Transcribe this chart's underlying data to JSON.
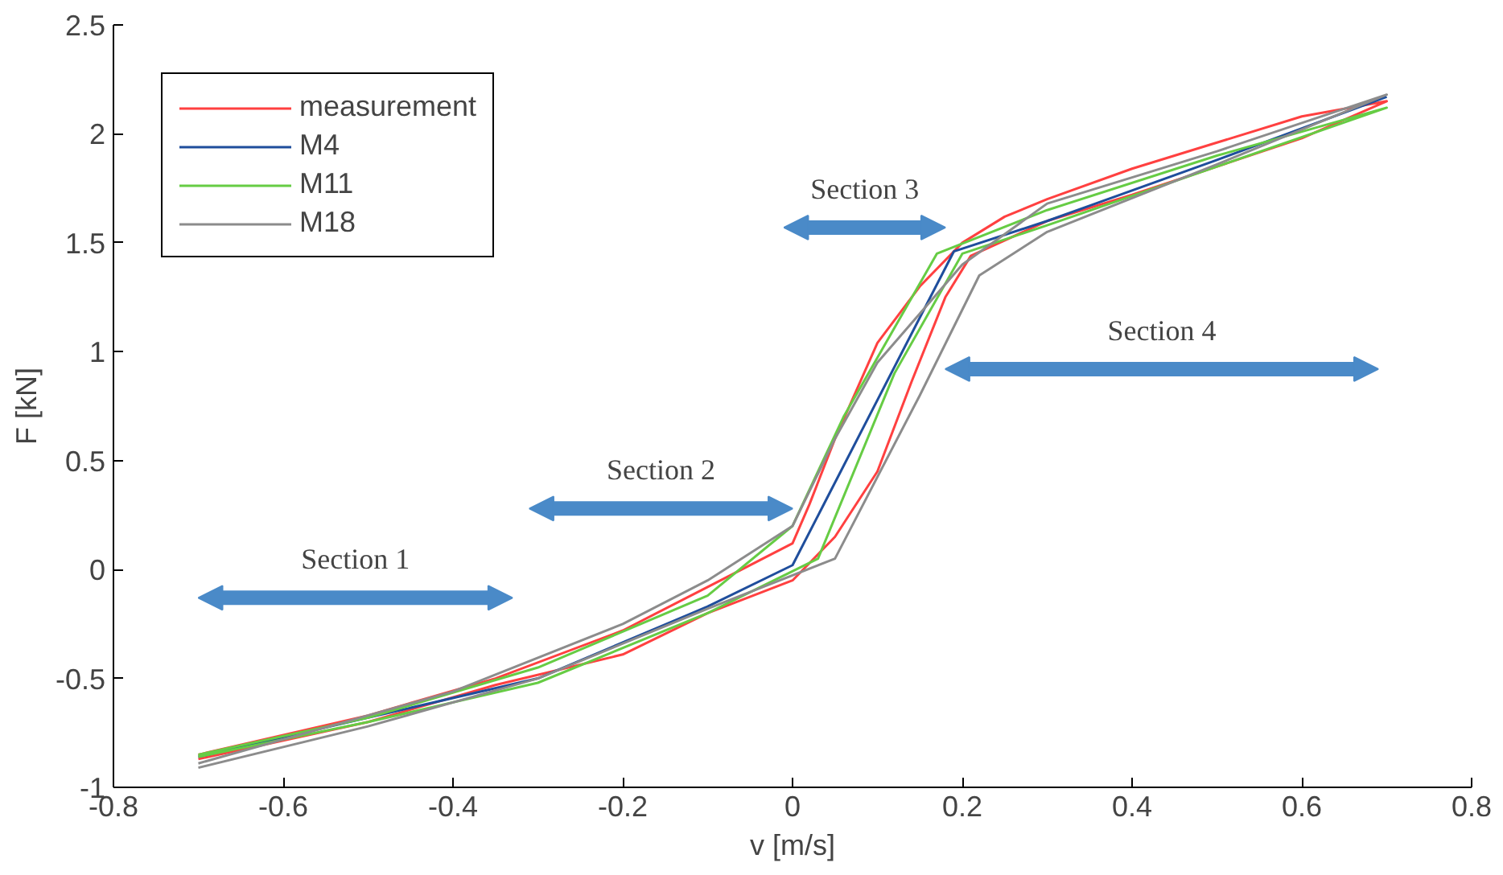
{
  "chart_data": {
    "type": "line",
    "xlabel": "v [m/s]",
    "ylabel": "F [kN]",
    "xlim": [
      -0.8,
      0.8
    ],
    "ylim": [
      -1,
      2.5
    ],
    "xticks": [
      -0.8,
      -0.6,
      -0.4,
      -0.2,
      0,
      0.2,
      0.4,
      0.6,
      0.8
    ],
    "yticks": [
      -1,
      -0.5,
      0,
      0.5,
      1,
      1.5,
      2,
      2.5
    ],
    "grid": false,
    "legend": "top left",
    "series": [
      {
        "name": "measurement",
        "color": "#ff4040",
        "x": [
          -0.7,
          -0.5,
          -0.35,
          -0.2,
          -0.1,
          0,
          0.05,
          0.1,
          0.14,
          0.18,
          0.21,
          0.3,
          0.4,
          0.5,
          0.6,
          0.7,
          0.6,
          0.5,
          0.4,
          0.3,
          0.25,
          0.2,
          0.15,
          0.1,
          0.05,
          0.02,
          0,
          -0.1,
          -0.2,
          -0.35,
          -0.5,
          -0.7
        ],
        "values": [
          -0.87,
          -0.7,
          -0.53,
          -0.39,
          -0.2,
          -0.05,
          0.15,
          0.45,
          0.86,
          1.25,
          1.44,
          1.6,
          1.72,
          1.85,
          1.98,
          2.15,
          2.08,
          1.96,
          1.84,
          1.7,
          1.62,
          1.5,
          1.3,
          1.04,
          0.6,
          0.3,
          0.12,
          -0.08,
          -0.28,
          -0.5,
          -0.67,
          -0.85
        ]
      },
      {
        "name": "M4",
        "color": "#1f4e9c",
        "x": [
          -0.7,
          -0.5,
          -0.3,
          -0.1,
          0,
          0.19,
          0.3,
          0.5,
          0.7
        ],
        "values": [
          -0.86,
          -0.68,
          -0.5,
          -0.17,
          0.02,
          1.46,
          1.6,
          1.88,
          2.17
        ]
      },
      {
        "name": "M11",
        "color": "#66cc44",
        "x": [
          -0.7,
          -0.5,
          -0.3,
          -0.1,
          0.03,
          0.12,
          0.2,
          0.3,
          0.5,
          0.7,
          0.5,
          0.3,
          0.17,
          0.06,
          0,
          -0.1,
          -0.3,
          -0.5,
          -0.7
        ],
        "values": [
          -0.86,
          -0.7,
          -0.52,
          -0.2,
          0.05,
          0.9,
          1.45,
          1.58,
          1.85,
          2.12,
          1.9,
          1.65,
          1.45,
          0.7,
          0.2,
          -0.12,
          -0.45,
          -0.68,
          -0.85
        ]
      },
      {
        "name": "M18",
        "color": "#8c8c8c",
        "x": [
          -0.7,
          -0.5,
          -0.3,
          -0.1,
          0.05,
          0.15,
          0.22,
          0.3,
          0.5,
          0.7,
          0.5,
          0.3,
          0.2,
          0.1,
          0.05,
          0,
          -0.1,
          -0.2,
          -0.4,
          -0.7
        ],
        "values": [
          -0.91,
          -0.72,
          -0.5,
          -0.18,
          0.05,
          0.8,
          1.35,
          1.55,
          1.86,
          2.18,
          1.92,
          1.68,
          1.4,
          0.95,
          0.6,
          0.2,
          -0.05,
          -0.25,
          -0.56,
          -0.89
        ]
      }
    ],
    "annotations": [
      "Section 1",
      "Section 2",
      "Section 3",
      "Section 4"
    ]
  }
}
